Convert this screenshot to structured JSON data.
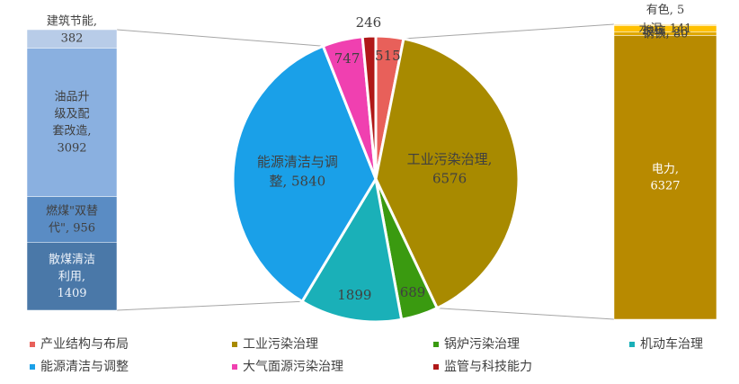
{
  "chart_data": [
    {
      "type": "pie",
      "categories": [
        "产业结构与布局",
        "工业污染治理",
        "锅炉污染治理",
        "机动车治理",
        "能源清洁与调整",
        "大气面源污染治理",
        "监管与科技能力"
      ],
      "values": [
        515,
        6576,
        689,
        1899,
        5840,
        747,
        246
      ],
      "value_labels": [
        "515",
        "工业污染治理,\n6576",
        "689",
        "1899",
        "能源清洁与调\n整, 5840",
        "747",
        "246"
      ],
      "colors": [
        "#e8605a",
        "#a88a00",
        "#3a9a10",
        "#1ab0b8",
        "#1aa0e8",
        "#f040b0",
        "#b01818"
      ]
    },
    {
      "type": "stacked-bar",
      "values": [
        1409,
        956,
        3092,
        382
      ],
      "value_labels": [
        "散煤清洁\n利用,\n1409",
        "燃煤\"双替\n代\", 956",
        "油品升\n级及配\n套改造,\n3092",
        "建筑节能,\n382"
      ],
      "colors": [
        "#4a78a8",
        "#5a8cc4",
        "#8ab0e0",
        "#b8cce8"
      ]
    },
    {
      "type": "stacked-bar",
      "values": [
        6327,
        80,
        141,
        23,
        5
      ],
      "value_labels": [
        "电力,\n6327",
        "钢铁, 80",
        "水泥, 141",
        "玻璃, 23",
        "有色, 5"
      ],
      "colors": [
        "#b88a00",
        "#e0a800",
        "#ffc000",
        "#ffd060",
        "#ffe8a0"
      ]
    }
  ]
}
